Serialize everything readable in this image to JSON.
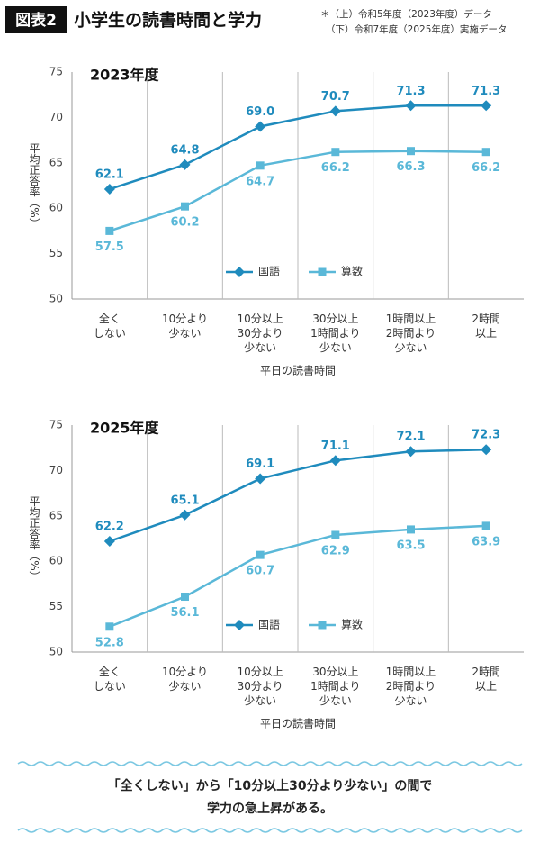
{
  "header": {
    "badge": "図表2",
    "title": "小学生の読書時間と学力",
    "notes": [
      "＊（上）令和5年度（2023年度）データ",
      "（下）令和7年度（2025年度）実施データ"
    ]
  },
  "chart_data": [
    {
      "type": "line",
      "title": "2023年度",
      "x_label": "平日の読書時間",
      "y_label": "平均正答率（%）",
      "categories": [
        "全く\nしない",
        "10分より\n少ない",
        "10分以上\n30分より\n少ない",
        "30分以上\n1時間より\n少ない",
        "1時間以上\n2時間より\n少ない",
        "2時間\n以上"
      ],
      "series": [
        {
          "name": "国語",
          "color": "#1f8bbd",
          "marker": "diamond",
          "label_position": "above",
          "values": [
            62.1,
            64.8,
            69.0,
            70.7,
            71.3,
            71.3
          ],
          "value_labels": [
            "62.1",
            "64.8",
            "69.0",
            "70.7",
            "71.3",
            "71.3"
          ]
        },
        {
          "name": "算数",
          "color": "#5ab8d8",
          "marker": "square",
          "label_position": "below",
          "values": [
            57.5,
            60.2,
            64.7,
            66.2,
            66.3,
            66.2
          ],
          "value_labels": [
            "57.5",
            "60.2",
            "64.7",
            "66.2",
            "66.3",
            "66.2"
          ]
        }
      ],
      "ylim": [
        50,
        75
      ],
      "yticks": [
        50,
        55,
        60,
        65,
        70,
        75
      ],
      "legend": "bottom-center"
    },
    {
      "type": "line",
      "title": "2025年度",
      "x_label": "平日の読書時間",
      "y_label": "平均正答率（%）",
      "categories": [
        "全く\nしない",
        "10分より\n少ない",
        "10分以上\n30分より\n少ない",
        "30分以上\n1時間より\n少ない",
        "1時間以上\n2時間より\n少ない",
        "2時間\n以上"
      ],
      "series": [
        {
          "name": "国語",
          "color": "#1f8bbd",
          "marker": "diamond",
          "label_position": "above",
          "values": [
            62.2,
            65.1,
            69.1,
            71.1,
            72.1,
            72.3
          ],
          "value_labels": [
            "62.2",
            "65.1",
            "69.1",
            "71.1",
            "72.1",
            "72.3"
          ]
        },
        {
          "name": "算数",
          "color": "#5ab8d8",
          "marker": "square",
          "label_position": "below",
          "values": [
            52.8,
            56.1,
            60.7,
            62.9,
            63.5,
            63.9
          ],
          "value_labels": [
            "52.8",
            "56.1",
            "60.7",
            "62.9",
            "63.5",
            "63.9"
          ]
        }
      ],
      "ylim": [
        50,
        75
      ],
      "yticks": [
        50,
        55,
        60,
        65,
        70,
        75
      ],
      "legend": "bottom-center"
    }
  ],
  "footer": {
    "lines": [
      "「全くしない」から「10分以上30分より少ない」の間で",
      "学力の急上昇がある。"
    ]
  }
}
